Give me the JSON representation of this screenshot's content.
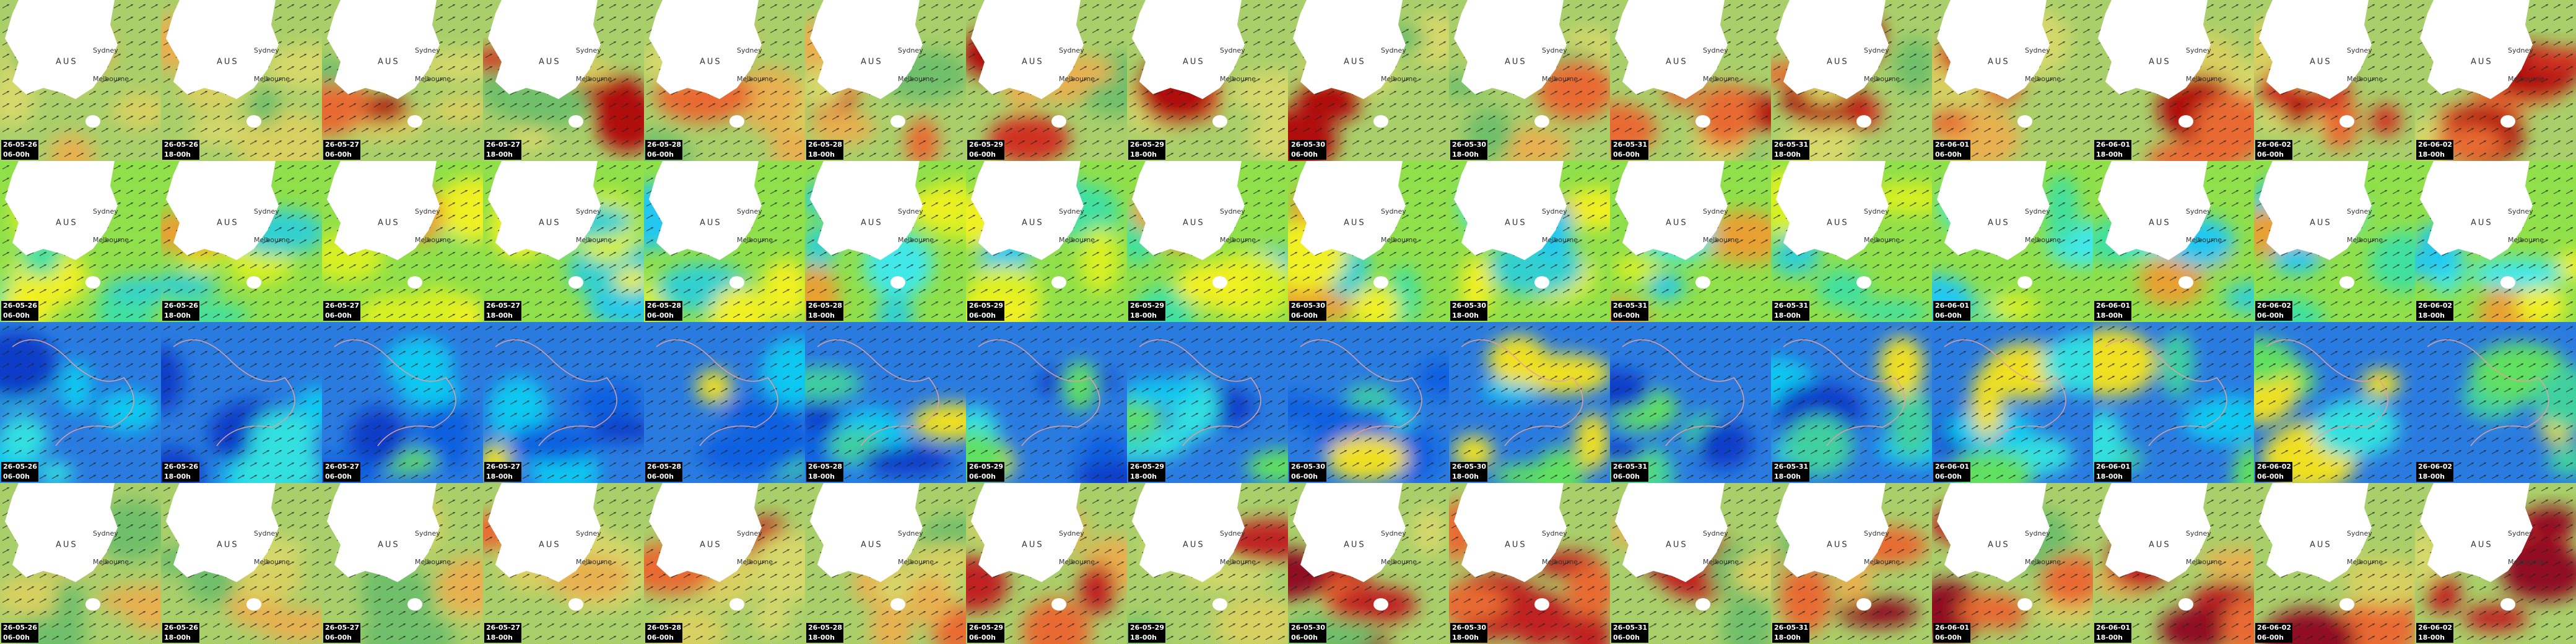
{
  "rows": [
    {
      "map_labels": [
        "AUS",
        "Sydney",
        "Melbourne"
      ],
      "tiles": [
        {
          "date": "26-05-26",
          "time": "06-00h"
        },
        {
          "date": "26-05-26",
          "time": "18-00h"
        },
        {
          "date": "26-05-27",
          "time": "06-00h"
        },
        {
          "date": "26-05-27",
          "time": "18-00h"
        },
        {
          "date": "26-05-28",
          "time": "06-00h"
        },
        {
          "date": "26-05-28",
          "time": "18-00h"
        },
        {
          "date": "26-05-29",
          "time": "06-00h"
        },
        {
          "date": "26-05-29",
          "time": "18-00h"
        },
        {
          "date": "26-05-30",
          "time": "06-00h"
        },
        {
          "date": "26-05-30",
          "time": "18-00h"
        },
        {
          "date": "26-05-31",
          "time": "06-00h"
        },
        {
          "date": "26-05-31",
          "time": "18-00h"
        },
        {
          "date": "26-06-01",
          "time": "06-00h"
        },
        {
          "date": "26-06-01",
          "time": "18-00h"
        },
        {
          "date": "26-06-02",
          "time": "06-00h"
        },
        {
          "date": "26-06-02",
          "time": "18-00h"
        }
      ]
    },
    {
      "map_labels": [
        "AUS",
        "Sydney",
        "Melbourne"
      ],
      "tiles": [
        {
          "date": "26-05-26",
          "time": "06-00h"
        },
        {
          "date": "26-05-26",
          "time": "18-00h"
        },
        {
          "date": "26-05-27",
          "time": "06-00h"
        },
        {
          "date": "26-05-27",
          "time": "18-00h"
        },
        {
          "date": "26-05-28",
          "time": "06-00h"
        },
        {
          "date": "26-05-28",
          "time": "18-00h"
        },
        {
          "date": "26-05-29",
          "time": "06-00h"
        },
        {
          "date": "26-05-29",
          "time": "18-00h"
        },
        {
          "date": "26-05-30",
          "time": "06-00h"
        },
        {
          "date": "26-05-30",
          "time": "18-00h"
        },
        {
          "date": "26-05-31",
          "time": "06-00h"
        },
        {
          "date": "26-05-31",
          "time": "18-00h"
        },
        {
          "date": "26-06-01",
          "time": "06-00h"
        },
        {
          "date": "26-06-01",
          "time": "18-00h"
        },
        {
          "date": "26-06-02",
          "time": "06-00h"
        },
        {
          "date": "26-06-02",
          "time": "18-00h"
        }
      ]
    },
    {
      "map_labels": [],
      "tiles": [
        {
          "date": "26-05-26",
          "time": "06-00h"
        },
        {
          "date": "26-05-26",
          "time": "18-00h"
        },
        {
          "date": "26-05-27",
          "time": "06-00h"
        },
        {
          "date": "26-05-27",
          "time": "18-00h"
        },
        {
          "date": "26-05-28",
          "time": "06-00h"
        },
        {
          "date": "26-05-28",
          "time": "18-00h"
        },
        {
          "date": "26-05-29",
          "time": "06-00h"
        },
        {
          "date": "26-05-29",
          "time": "18-00h"
        },
        {
          "date": "26-05-30",
          "time": "06-00h"
        },
        {
          "date": "26-05-30",
          "time": "18-00h"
        },
        {
          "date": "26-05-31",
          "time": "06-00h"
        },
        {
          "date": "26-05-31",
          "time": "18-00h"
        },
        {
          "date": "26-06-01",
          "time": "06-00h"
        },
        {
          "date": "26-06-01",
          "time": "18-00h"
        },
        {
          "date": "26-06-02",
          "time": "06-00h"
        },
        {
          "date": "26-06-02",
          "time": "18-00h"
        }
      ]
    },
    {
      "map_labels": [
        "AUS",
        "Sydney",
        "Melbourne"
      ],
      "tiles": [
        {
          "date": "26-05-26",
          "time": "06-00h"
        },
        {
          "date": "26-05-26",
          "time": "18-00h"
        },
        {
          "date": "26-05-27",
          "time": "06-00h"
        },
        {
          "date": "26-05-27",
          "time": "18-00h"
        },
        {
          "date": "26-05-28",
          "time": "06-00h"
        },
        {
          "date": "26-05-28",
          "time": "18-00h"
        },
        {
          "date": "26-05-29",
          "time": "06-00h"
        },
        {
          "date": "26-05-29",
          "time": "18-00h"
        },
        {
          "date": "26-05-30",
          "time": "06-00h"
        },
        {
          "date": "26-05-30",
          "time": "18-00h"
        },
        {
          "date": "26-05-31",
          "time": "06-00h"
        },
        {
          "date": "26-05-31",
          "time": "18-00h"
        },
        {
          "date": "26-06-01",
          "time": "06-00h"
        },
        {
          "date": "26-06-01",
          "time": "18-00h"
        },
        {
          "date": "26-06-02",
          "time": "06-00h"
        },
        {
          "date": "26-06-02",
          "time": "18-00h"
        }
      ]
    }
  ]
}
